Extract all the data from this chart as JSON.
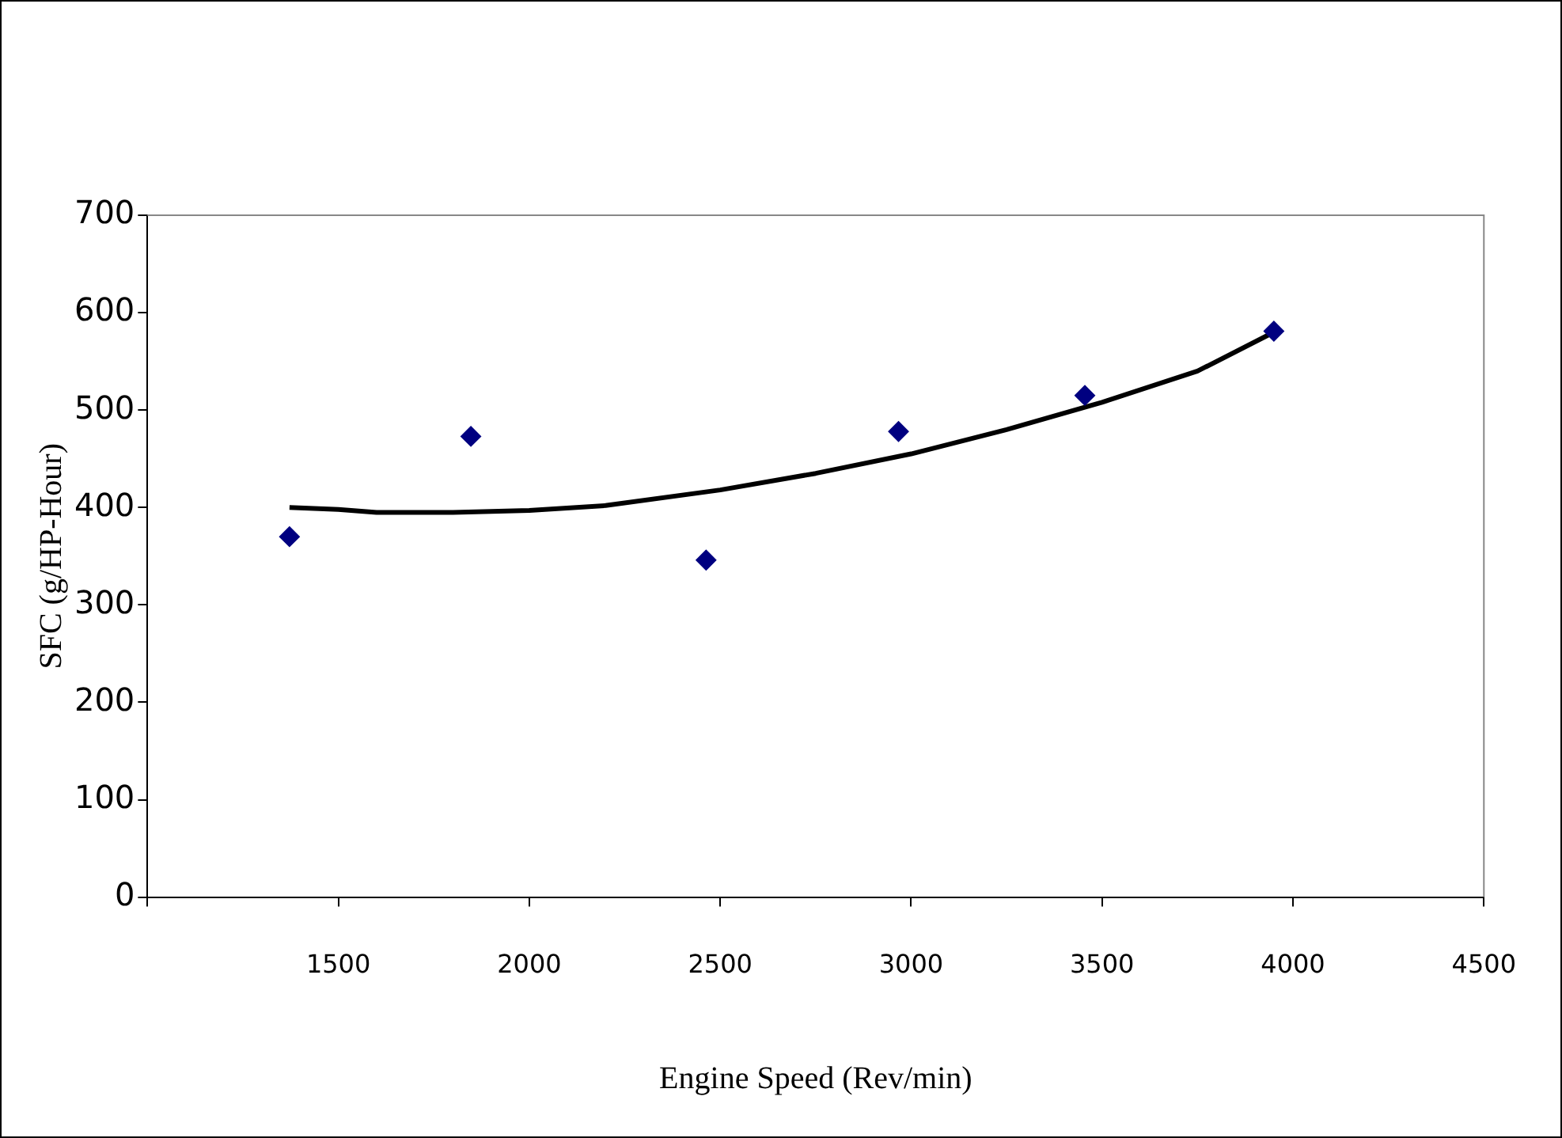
{
  "chart_data": {
    "type": "scatter",
    "xlabel": "Engine Speed (Rev/min)",
    "ylabel": "SFC (g/HP-Hour)",
    "xlim": [
      1000,
      4500
    ],
    "xticks": [
      {
        "value": 1000,
        "label": null
      },
      1500,
      2000,
      2500,
      3000,
      3500,
      4000,
      4500
    ],
    "ylim": [
      0,
      700
    ],
    "yticks": [
      0,
      100,
      200,
      300,
      400,
      500,
      600,
      700
    ],
    "legend": false,
    "series": [
      {
        "marker": "diamond",
        "color": "#000080",
        "x": [
          1372,
          1847,
          2463,
          2967,
          3455,
          3950
        ],
        "values": [
          370,
          473,
          346,
          478,
          515,
          581
        ]
      },
      {
        "type": "line",
        "marker": "none",
        "color": "#000000",
        "x": [
          1372,
          1500,
          1600,
          1800,
          2000,
          2200,
          2500,
          2750,
          3000,
          3250,
          3500,
          3750,
          3950
        ],
        "values": [
          400,
          398,
          395,
          395,
          397,
          402,
          418,
          435,
          455,
          480,
          508,
          540,
          580
        ]
      }
    ]
  }
}
